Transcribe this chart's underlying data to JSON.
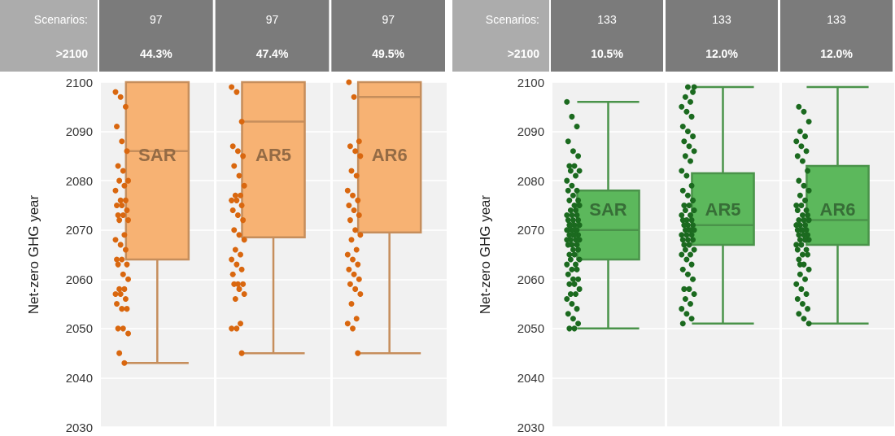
{
  "chart_data": [
    {
      "type": "box",
      "categories": [
        "SAR",
        "AR5",
        "AR6"
      ],
      "ylabel": "Net-zero GHG year",
      "ylim": [
        2030,
        2100
      ],
      "yticks": [
        2030,
        2040,
        2050,
        2060,
        2070,
        2080,
        2090,
        2100
      ],
      "grid": "y",
      "annotations": [
        "Scenarios:",
        ">2100",
        "97",
        "44.3%",
        "97",
        "47.4%",
        "97",
        "49.5%"
      ],
      "series": [
        {
          "color": "#f7b273",
          "boxes": [
            {
              "low": 2043,
              "q1": 2064,
              "median": 2086,
              "q3": 2100,
              "high": 2100
            },
            {
              "low": 2045,
              "q1": 2068.5,
              "median": 2092,
              "q3": 2100,
              "high": 2100
            },
            {
              "low": 2045,
              "q1": 2069.5,
              "median": 2097,
              "q3": 2100,
              "high": 2100
            }
          ]
        },
        {
          "type": "scatter",
          "color": "#d9670f",
          "x": [
            "SAR",
            "SAR",
            "SAR",
            "SAR",
            "SAR",
            "SAR",
            "SAR",
            "SAR",
            "SAR",
            "SAR",
            "SAR",
            "SAR",
            "SAR",
            "SAR",
            "SAR",
            "SAR",
            "SAR",
            "SAR",
            "SAR",
            "SAR",
            "SAR",
            "SAR",
            "SAR",
            "SAR",
            "SAR",
            "SAR",
            "SAR",
            "SAR",
            "SAR",
            "SAR",
            "SAR",
            "SAR",
            "SAR",
            "SAR",
            "SAR",
            "SAR",
            "SAR",
            "SAR",
            "SAR",
            "SAR",
            "SAR",
            "SAR",
            "SAR",
            "SAR",
            "AR5",
            "AR5",
            "AR5",
            "AR5",
            "AR5",
            "AR5",
            "AR5",
            "AR5",
            "AR5",
            "AR5",
            "AR5",
            "AR5",
            "AR5",
            "AR5",
            "AR5",
            "AR5",
            "AR5",
            "AR5",
            "AR5",
            "AR5",
            "AR5",
            "AR5",
            "AR5",
            "AR5",
            "AR5",
            "AR5",
            "AR5",
            "AR5",
            "AR5",
            "AR5",
            "AR5",
            "AR5",
            "AR5",
            "AR5",
            "AR5",
            "AR5",
            "AR6",
            "AR6",
            "AR6",
            "AR6",
            "AR6",
            "AR6",
            "AR6",
            "AR6",
            "AR6",
            "AR6",
            "AR6",
            "AR6",
            "AR6",
            "AR6",
            "AR6",
            "AR6",
            "AR6",
            "AR6",
            "AR6",
            "AR6",
            "AR6",
            "AR6",
            "AR6",
            "AR6",
            "AR6",
            "AR6",
            "AR6",
            "AR6",
            "AR6",
            "AR6",
            "AR6",
            "AR6",
            "AR6"
          ],
          "values": [
            2098,
            2097,
            2095,
            2091,
            2088,
            2086,
            2083,
            2082,
            2080,
            2080,
            2079,
            2078,
            2076,
            2076,
            2075,
            2075,
            2074,
            2073,
            2073,
            2072,
            2072,
            2069,
            2068,
            2067,
            2066,
            2064,
            2064,
            2063,
            2063,
            2061,
            2060,
            2058,
            2058,
            2057,
            2057,
            2056,
            2055,
            2054,
            2054,
            2050,
            2050,
            2049,
            2045,
            2043,
            2099,
            2098,
            2092,
            2087,
            2086,
            2085,
            2083,
            2081,
            2079,
            2077,
            2077,
            2076,
            2076,
            2075,
            2074,
            2073,
            2072,
            2070,
            2069,
            2068,
            2066,
            2065,
            2064,
            2063,
            2062,
            2061,
            2059,
            2059,
            2059,
            2058,
            2057,
            2056,
            2051,
            2050,
            2050,
            2045,
            2100,
            2097,
            2088,
            2087,
            2086,
            2085,
            2082,
            2081,
            2078,
            2077,
            2076,
            2075,
            2074,
            2073,
            2072,
            2070,
            2069,
            2068,
            2066,
            2065,
            2064,
            2063,
            2062,
            2061,
            2060,
            2059,
            2058,
            2057,
            2055,
            2052,
            2051,
            2050,
            2045
          ]
        }
      ]
    },
    {
      "type": "box",
      "categories": [
        "SAR",
        "AR5",
        "AR6"
      ],
      "ylabel": "Net-zero GHG year",
      "ylim": [
        2030,
        2100
      ],
      "yticks": [
        2030,
        2040,
        2050,
        2060,
        2070,
        2080,
        2090,
        2100
      ],
      "grid": "y",
      "annotations": [
        "Scenarios:",
        ">2100",
        "133",
        "10.5%",
        "133",
        "12.0%",
        "133",
        "12.0%"
      ],
      "series": [
        {
          "color": "#5cb85c",
          "boxes": [
            {
              "low": 2050,
              "q1": 2064,
              "median": 2070,
              "q3": 2078,
              "high": 2096
            },
            {
              "low": 2051,
              "q1": 2067,
              "median": 2071,
              "q3": 2081.5,
              "high": 2099
            },
            {
              "low": 2051,
              "q1": 2067,
              "median": 2072,
              "q3": 2083,
              "high": 2099
            }
          ]
        },
        {
          "type": "scatter",
          "color": "#1b6a1f",
          "x": [
            "SAR",
            "SAR",
            "SAR",
            "SAR",
            "SAR",
            "SAR",
            "SAR",
            "SAR",
            "SAR",
            "SAR",
            "SAR",
            "SAR",
            "SAR",
            "SAR",
            "SAR",
            "SAR",
            "SAR",
            "SAR",
            "SAR",
            "SAR",
            "SAR",
            "SAR",
            "SAR",
            "SAR",
            "SAR",
            "SAR",
            "SAR",
            "SAR",
            "SAR",
            "SAR",
            "SAR",
            "SAR",
            "SAR",
            "SAR",
            "SAR",
            "SAR",
            "SAR",
            "SAR",
            "SAR",
            "SAR",
            "SAR",
            "SAR",
            "SAR",
            "SAR",
            "SAR",
            "SAR",
            "SAR",
            "SAR",
            "SAR",
            "SAR",
            "SAR",
            "SAR",
            "SAR",
            "SAR",
            "SAR",
            "SAR",
            "SAR",
            "SAR",
            "SAR",
            "SAR",
            "SAR",
            "SAR",
            "SAR",
            "SAR",
            "SAR",
            "SAR",
            "SAR",
            "SAR",
            "SAR",
            "SAR",
            "SAR",
            "SAR",
            "SAR",
            "SAR",
            "AR5",
            "AR5",
            "AR5",
            "AR5",
            "AR5",
            "AR5",
            "AR5",
            "AR5",
            "AR5",
            "AR5",
            "AR5",
            "AR5",
            "AR5",
            "AR5",
            "AR5",
            "AR5",
            "AR5",
            "AR5",
            "AR5",
            "AR5",
            "AR5",
            "AR5",
            "AR5",
            "AR5",
            "AR5",
            "AR5",
            "AR5",
            "AR5",
            "AR5",
            "AR5",
            "AR5",
            "AR5",
            "AR5",
            "AR5",
            "AR5",
            "AR5",
            "AR5",
            "AR5",
            "AR5",
            "AR5",
            "AR5",
            "AR5",
            "AR5",
            "AR5",
            "AR5",
            "AR5",
            "AR5",
            "AR5",
            "AR5",
            "AR5",
            "AR5",
            "AR5",
            "AR5",
            "AR5",
            "AR5",
            "AR5",
            "AR5",
            "AR5",
            "AR5",
            "AR5",
            "AR5",
            "AR5",
            "AR5",
            "AR5",
            "AR6",
            "AR6",
            "AR6",
            "AR6",
            "AR6",
            "AR6",
            "AR6",
            "AR6",
            "AR6",
            "AR6",
            "AR6",
            "AR6",
            "AR6",
            "AR6",
            "AR6",
            "AR6",
            "AR6",
            "AR6",
            "AR6",
            "AR6",
            "AR6",
            "AR6",
            "AR6",
            "AR6",
            "AR6",
            "AR6",
            "AR6",
            "AR6",
            "AR6",
            "AR6",
            "AR6",
            "AR6",
            "AR6",
            "AR6",
            "AR6",
            "AR6",
            "AR6",
            "AR6",
            "AR6",
            "AR6",
            "AR6",
            "AR6",
            "AR6",
            "AR6",
            "AR6",
            "AR6",
            "AR6",
            "AR6",
            "AR6",
            "AR6",
            "AR6",
            "AR6",
            "AR6",
            "AR6",
            "AR6",
            "AR6",
            "AR6",
            "AR6",
            "AR6",
            "AR6"
          ],
          "values": [
            2096,
            2093,
            2091,
            2088,
            2086,
            2085,
            2083,
            2083,
            2082,
            2082,
            2081,
            2080,
            2079,
            2078,
            2078,
            2077,
            2076,
            2076,
            2075,
            2075,
            2074,
            2074,
            2073,
            2073,
            2073,
            2072,
            2072,
            2072,
            2071,
            2071,
            2071,
            2071,
            2070,
            2070,
            2070,
            2070,
            2070,
            2069,
            2069,
            2069,
            2069,
            2068,
            2068,
            2068,
            2068,
            2067,
            2067,
            2067,
            2066,
            2066,
            2065,
            2065,
            2064,
            2064,
            2063,
            2063,
            2062,
            2062,
            2061,
            2060,
            2060,
            2059,
            2059,
            2058,
            2057,
            2057,
            2056,
            2055,
            2054,
            2053,
            2052,
            2051,
            2050,
            2050,
            2099,
            2097,
            2096,
            2095,
            2094,
            2093,
            2091,
            2090,
            2089,
            2088,
            2087,
            2086,
            2085,
            2084,
            2082,
            2081,
            2079,
            2078,
            2077,
            2076,
            2075,
            2075,
            2074,
            2074,
            2073,
            2073,
            2072,
            2072,
            2072,
            2071,
            2071,
            2071,
            2070,
            2070,
            2070,
            2070,
            2069,
            2069,
            2069,
            2068,
            2068,
            2068,
            2067,
            2067,
            2066,
            2066,
            2065,
            2065,
            2064,
            2063,
            2062,
            2061,
            2060,
            2058,
            2058,
            2057,
            2056,
            2055,
            2054,
            2053,
            2052,
            2051,
            2099,
            2098,
            2095,
            2094,
            2092,
            2090,
            2089,
            2088,
            2087,
            2086,
            2085,
            2084,
            2082,
            2080,
            2079,
            2078,
            2077,
            2076,
            2075,
            2075,
            2074,
            2074,
            2073,
            2073,
            2072,
            2072,
            2072,
            2071,
            2071,
            2071,
            2070,
            2070,
            2070,
            2070,
            2069,
            2069,
            2069,
            2068,
            2068,
            2068,
            2067,
            2067,
            2066,
            2066,
            2065,
            2065,
            2064,
            2063,
            2062,
            2061,
            2060,
            2059,
            2058,
            2057,
            2056,
            2055,
            2054,
            2053,
            2052,
            2051,
            2063,
            2068
          ]
        }
      ]
    }
  ]
}
